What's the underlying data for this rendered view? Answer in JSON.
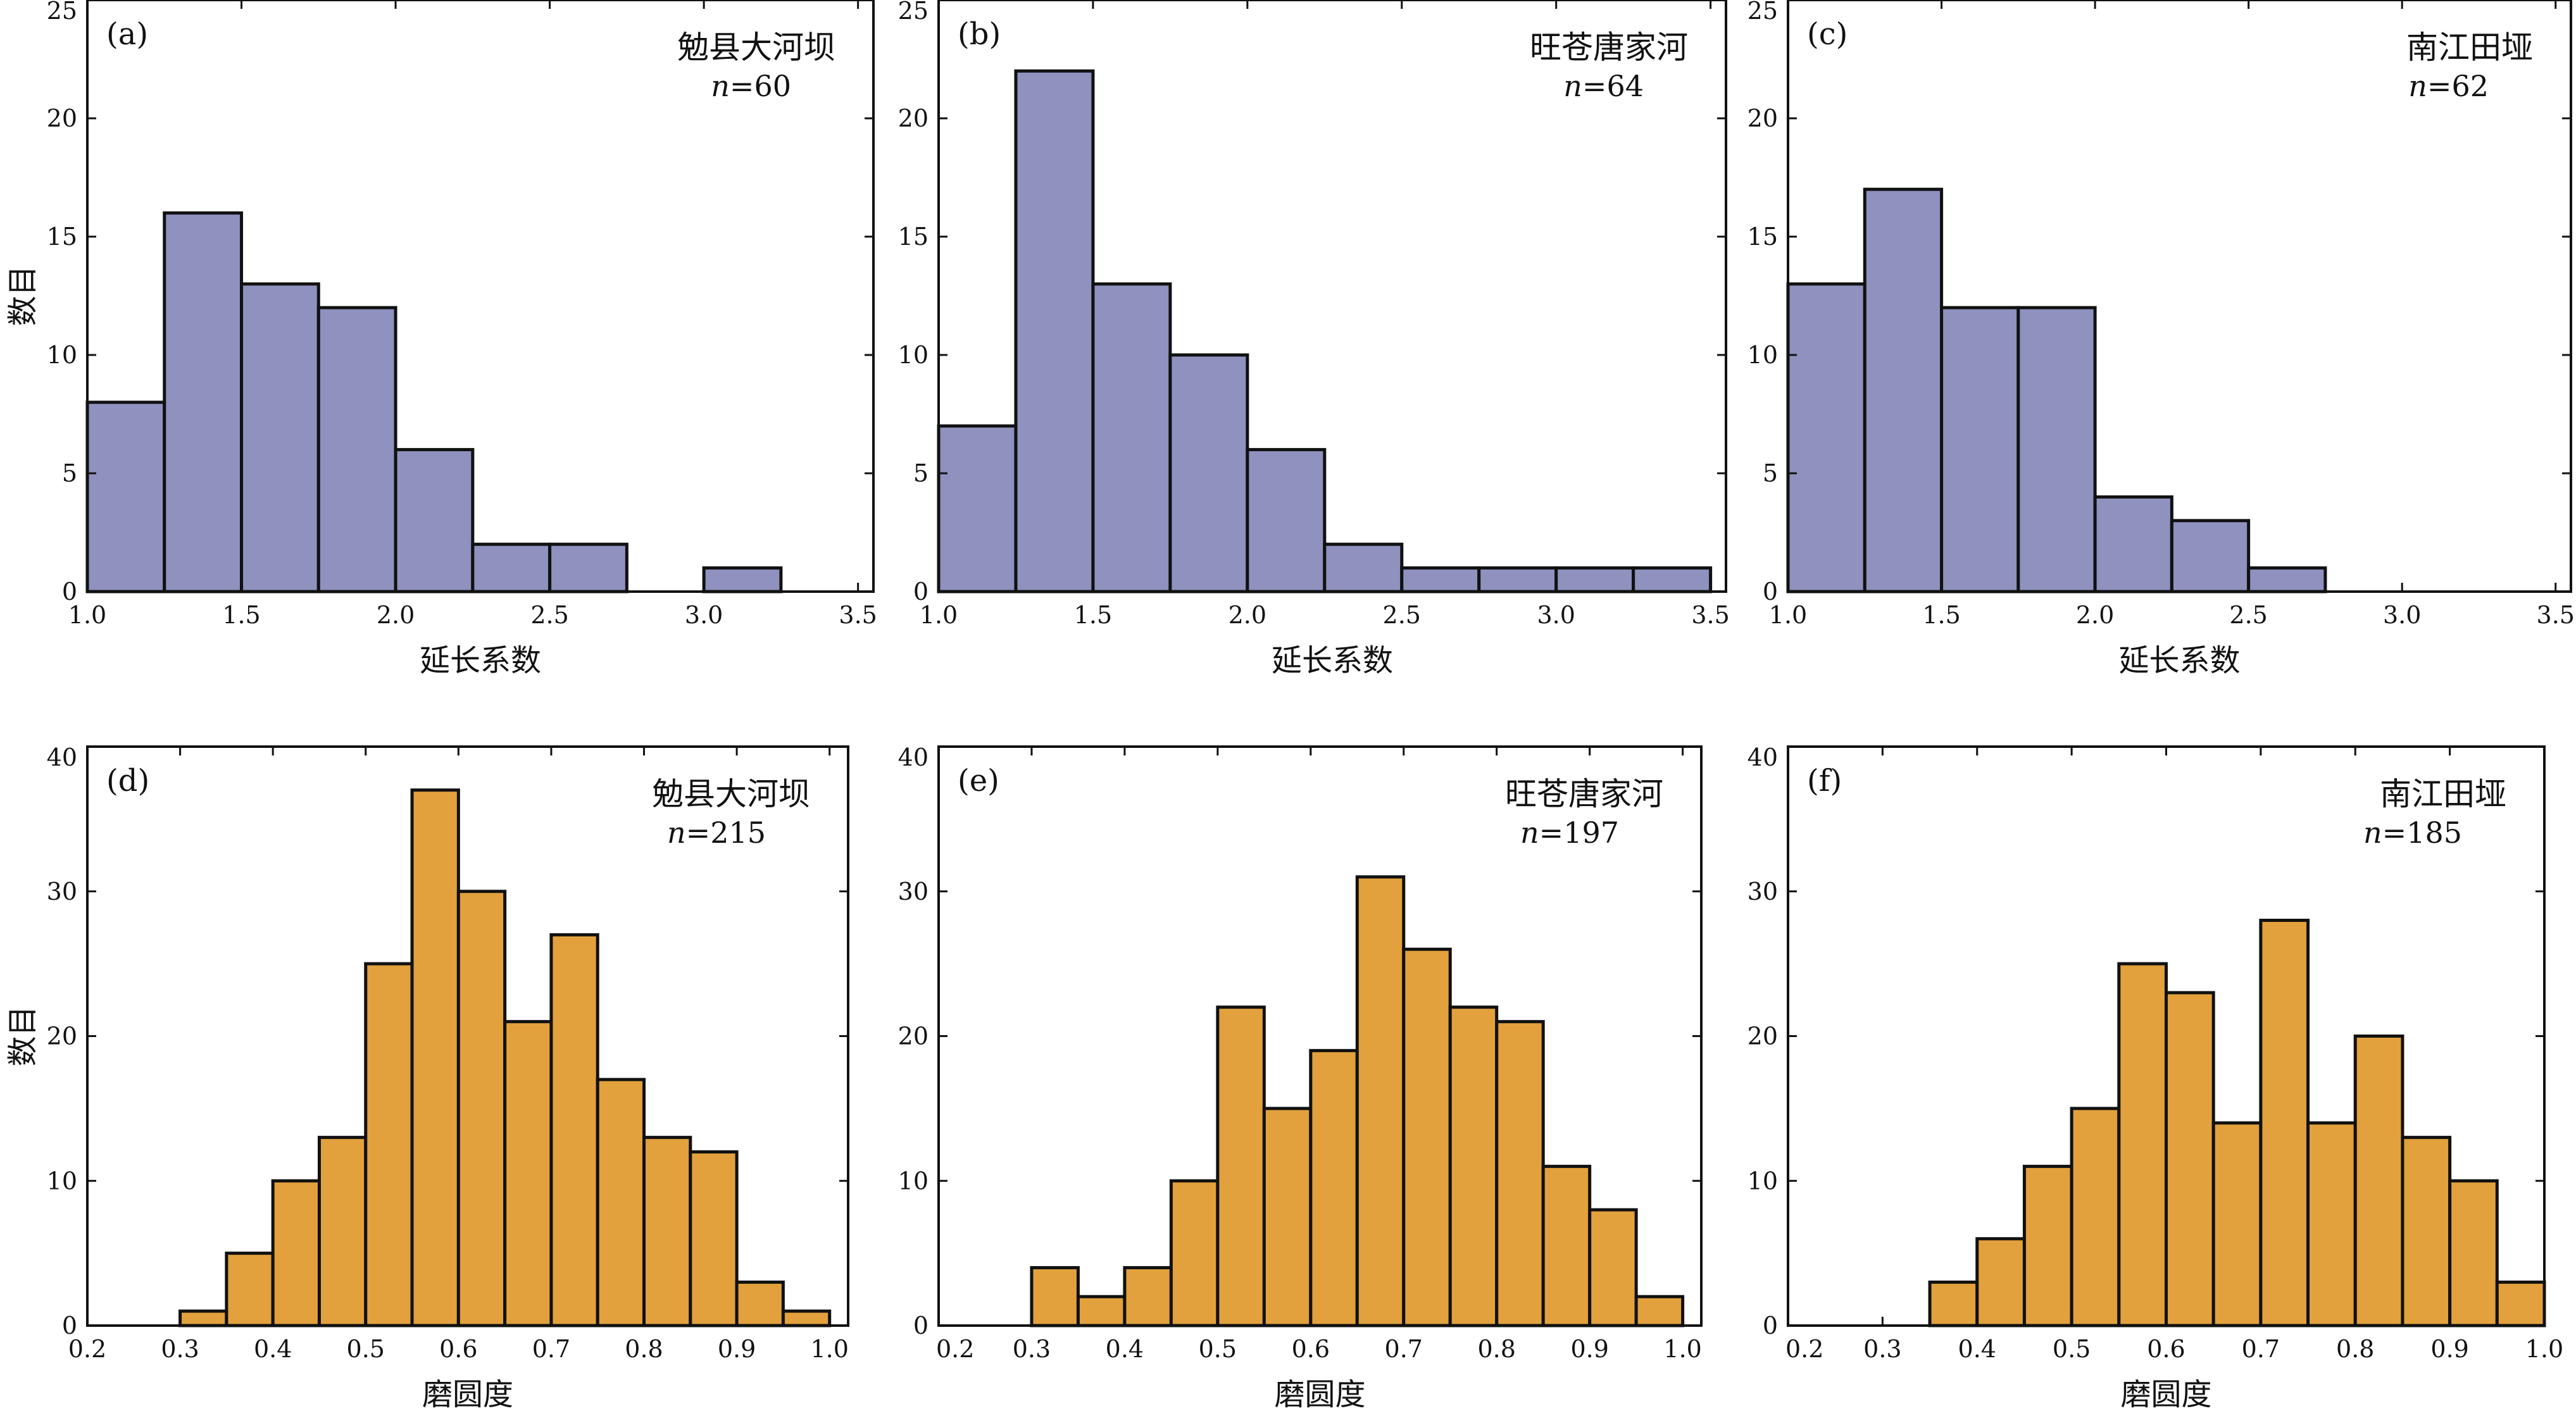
{
  "figure": {
    "ylabel": "数目",
    "colors": {
      "elongation_fill": "#8f91bf",
      "roundness_fill": "#e2a13c",
      "stroke": "#111111"
    }
  },
  "chart_data": [
    {
      "id": "a",
      "type": "bar",
      "panel_tag": "(a)",
      "site": "勉县大河坝",
      "n_prefix": "n",
      "n_value": "=60",
      "xlabel": "延长系数",
      "ylabel": "数目",
      "xlim": [
        1.0,
        3.55
      ],
      "ylim": [
        0,
        25
      ],
      "xticks": [
        1.0,
        1.5,
        2.0,
        2.5,
        3.0,
        3.5
      ],
      "xtick_labels": [
        "1.0",
        "1.5",
        "2.0",
        "2.5",
        "3.0",
        "3.5"
      ],
      "yticks": [
        0,
        5,
        10,
        15,
        20,
        25
      ],
      "ytick_labels": [
        "0",
        "5",
        "10",
        "15",
        "20",
        "25"
      ],
      "bin_start": 1.0,
      "bin_width": 0.25,
      "values": [
        8,
        16,
        13,
        12,
        6,
        2,
        2,
        0,
        1,
        0
      ]
    },
    {
      "id": "b",
      "type": "bar",
      "panel_tag": "(b)",
      "site": "旺苍唐家河",
      "n_prefix": "n",
      "n_value": "=64",
      "xlabel": "延长系数",
      "ylabel": "",
      "xlim": [
        1.0,
        3.55
      ],
      "ylim": [
        0,
        25
      ],
      "xticks": [
        1.0,
        1.5,
        2.0,
        2.5,
        3.0,
        3.5
      ],
      "xtick_labels": [
        "1.0",
        "1.5",
        "2.0",
        "2.5",
        "3.0",
        "3.5"
      ],
      "yticks": [
        0,
        5,
        10,
        15,
        20,
        25
      ],
      "ytick_labels": [
        "0",
        "5",
        "10",
        "15",
        "20",
        "25"
      ],
      "bin_start": 1.0,
      "bin_width": 0.25,
      "values": [
        7,
        22,
        13,
        10,
        6,
        2,
        1,
        1,
        1,
        1
      ]
    },
    {
      "id": "c",
      "type": "bar",
      "panel_tag": "(c)",
      "site": "南江田垭",
      "n_prefix": "n",
      "n_value": "=62",
      "xlabel": "延长系数",
      "ylabel": "",
      "xlim": [
        1.0,
        3.55
      ],
      "ylim": [
        0,
        25
      ],
      "xticks": [
        1.0,
        1.5,
        2.0,
        2.5,
        3.0,
        3.5
      ],
      "xtick_labels": [
        "1.0",
        "1.5",
        "2.0",
        "2.5",
        "3.0",
        "3.5"
      ],
      "yticks": [
        0,
        5,
        10,
        15,
        20,
        25
      ],
      "ytick_labels": [
        "0",
        "5",
        "10",
        "15",
        "20",
        "25"
      ],
      "bin_start": 1.0,
      "bin_width": 0.25,
      "values": [
        13,
        17,
        12,
        12,
        4,
        3,
        1,
        0,
        0,
        0
      ]
    },
    {
      "id": "d",
      "type": "bar",
      "panel_tag": "(d)",
      "site": "勉县大河坝",
      "n_prefix": "n",
      "n_value": "=215",
      "xlabel": "磨圆度",
      "ylabel": "数目",
      "xlim": [
        0.2,
        1.02
      ],
      "ylim": [
        0,
        40
      ],
      "xticks": [
        0.2,
        0.3,
        0.4,
        0.5,
        0.6,
        0.7,
        0.8,
        0.9,
        1.0
      ],
      "xtick_labels": [
        "0.2",
        "0.3",
        "0.4",
        "0.5",
        "0.6",
        "0.7",
        "0.8",
        "0.9",
        "1.0"
      ],
      "yticks": [
        0,
        10,
        20,
        30,
        40
      ],
      "ytick_labels": [
        "0",
        "10",
        "20",
        "30",
        "40"
      ],
      "bin_start": 0.2,
      "bin_width": 0.05,
      "values": [
        0,
        0,
        1,
        5,
        10,
        13,
        25,
        37,
        30,
        21,
        27,
        17,
        13,
        12,
        3,
        1
      ]
    },
    {
      "id": "e",
      "type": "bar",
      "panel_tag": "(e)",
      "site": "旺苍唐家河",
      "n_prefix": "n",
      "n_value": "=197",
      "xlabel": "磨圆度",
      "ylabel": "",
      "xlim": [
        0.2,
        1.02
      ],
      "ylim": [
        0,
        40
      ],
      "xticks": [
        0.2,
        0.3,
        0.4,
        0.5,
        0.6,
        0.7,
        0.8,
        0.9,
        1.0
      ],
      "xtick_labels": [
        "0.2",
        "0.3",
        "0.4",
        "0.5",
        "0.6",
        "0.7",
        "0.8",
        "0.9",
        "1.0"
      ],
      "yticks": [
        0,
        10,
        20,
        30,
        40
      ],
      "ytick_labels": [
        "0",
        "10",
        "20",
        "30",
        "40"
      ],
      "bin_start": 0.2,
      "bin_width": 0.05,
      "values": [
        0,
        0,
        4,
        2,
        4,
        10,
        22,
        15,
        19,
        31,
        26,
        22,
        21,
        11,
        8,
        2
      ]
    },
    {
      "id": "f",
      "type": "bar",
      "panel_tag": "(f)",
      "site": "南江田垭",
      "n_prefix": "n",
      "n_value": "=185",
      "xlabel": "磨圆度",
      "ylabel": "",
      "xlim": [
        0.2,
        1.0
      ],
      "ylim": [
        0,
        40
      ],
      "xticks": [
        0.2,
        0.3,
        0.4,
        0.5,
        0.6,
        0.7,
        0.8,
        0.9,
        1.0
      ],
      "xtick_labels": [
        "0.2",
        "0.3",
        "0.4",
        "0.5",
        "0.6",
        "0.7",
        "0.8",
        "0.9",
        "1.0"
      ],
      "yticks": [
        0,
        10,
        20,
        30,
        40
      ],
      "ytick_labels": [
        "0",
        "10",
        "20",
        "30",
        "40"
      ],
      "bin_start": 0.2,
      "bin_width": 0.05,
      "values": [
        0,
        0,
        0,
        3,
        6,
        11,
        15,
        25,
        23,
        14,
        28,
        14,
        20,
        13,
        10,
        3
      ]
    }
  ]
}
